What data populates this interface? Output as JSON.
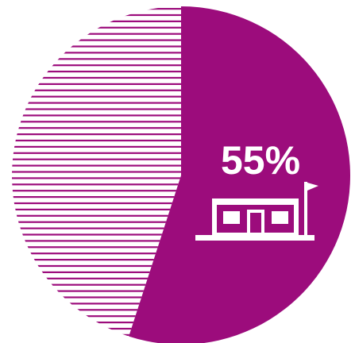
{
  "chart_data": {
    "type": "pie",
    "slices": [
      {
        "value": 55,
        "label": "55%",
        "color": "#9c0c7c",
        "fill": "solid",
        "icon": "school-building-icon"
      },
      {
        "value": 45,
        "label": "",
        "color": "#9c0c7c",
        "fill": "horizontal-stripes"
      }
    ],
    "start_angle_deg": 0,
    "direction": "clockwise",
    "legend": "none",
    "title": ""
  },
  "colors": {
    "accent": "#9c0c7c",
    "background": "#ffffff",
    "label": "#ffffff"
  }
}
